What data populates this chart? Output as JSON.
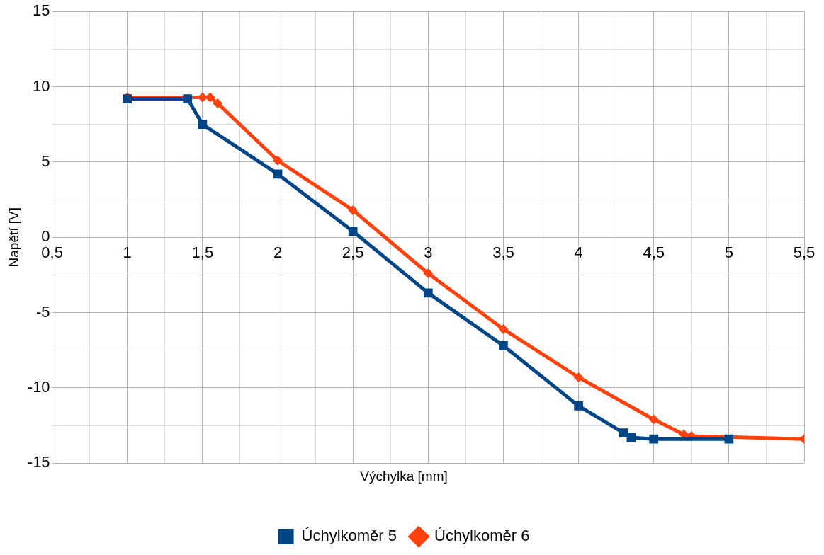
{
  "chart_data": {
    "type": "line",
    "xlabel": "Výchylka [mm]",
    "ylabel": "Napětí [V]",
    "xlim": [
      0.5,
      5.5
    ],
    "xticks": [
      {
        "value": 0.5,
        "label": "0,5"
      },
      {
        "value": 0.75,
        "label": null
      },
      {
        "value": 1,
        "label": "1"
      },
      {
        "value": 1.25,
        "label": null
      },
      {
        "value": 1.5,
        "label": "1,5"
      },
      {
        "value": 1.75,
        "label": null
      },
      {
        "value": 2,
        "label": "2"
      },
      {
        "value": 2.25,
        "label": null
      },
      {
        "value": 2.5,
        "label": "2,5"
      },
      {
        "value": 2.75,
        "label": null
      },
      {
        "value": 3,
        "label": "3"
      },
      {
        "value": 3.25,
        "label": null
      },
      {
        "value": 3.5,
        "label": "3,5"
      },
      {
        "value": 3.75,
        "label": null
      },
      {
        "value": 4,
        "label": "4"
      },
      {
        "value": 4.25,
        "label": null
      },
      {
        "value": 4.5,
        "label": "4,5"
      },
      {
        "value": 4.75,
        "label": null
      },
      {
        "value": 5,
        "label": "5"
      },
      {
        "value": 5.25,
        "label": null
      },
      {
        "value": 5.5,
        "label": "5,5"
      }
    ],
    "ylim": [
      -15,
      15
    ],
    "yticks": [
      -15,
      {
        "value": -12.5,
        "label": null
      },
      -10,
      {
        "value": -7.5,
        "label": null
      },
      -5,
      {
        "value": -2.5,
        "label": null
      },
      0,
      {
        "value": 2.5,
        "label": null
      },
      5,
      {
        "value": 7.5,
        "label": null
      },
      10,
      {
        "value": 12.5,
        "label": null
      },
      15
    ],
    "grid": true,
    "legend": "bottom",
    "line_style": "solid",
    "series": [
      {
        "name": "Úchylkoměr 5",
        "color": "#004586",
        "marker": "square",
        "x": [
          1,
          1.4,
          1.5,
          2,
          2.5,
          3,
          3.5,
          4,
          4.3,
          4.35,
          4.5,
          5
        ],
        "values": [
          9.2,
          9.2,
          7.5,
          4.2,
          0.4,
          -3.7,
          -7.2,
          -11.2,
          -13,
          -13.3,
          -13.4,
          -13.4
        ]
      },
      {
        "name": "Úchylkoměr 6",
        "color": "#ff420e",
        "marker": "diamond",
        "x": [
          1,
          1.5,
          1.55,
          1.6,
          2,
          2.5,
          3,
          3.5,
          4,
          4.5,
          4.7,
          4.75,
          5.5
        ],
        "values": [
          9.3,
          9.3,
          9.3,
          8.9,
          5.1,
          1.8,
          -2.4,
          -6.1,
          -9.3,
          -12.1,
          -13.1,
          -13.2,
          -13.4
        ]
      }
    ]
  }
}
